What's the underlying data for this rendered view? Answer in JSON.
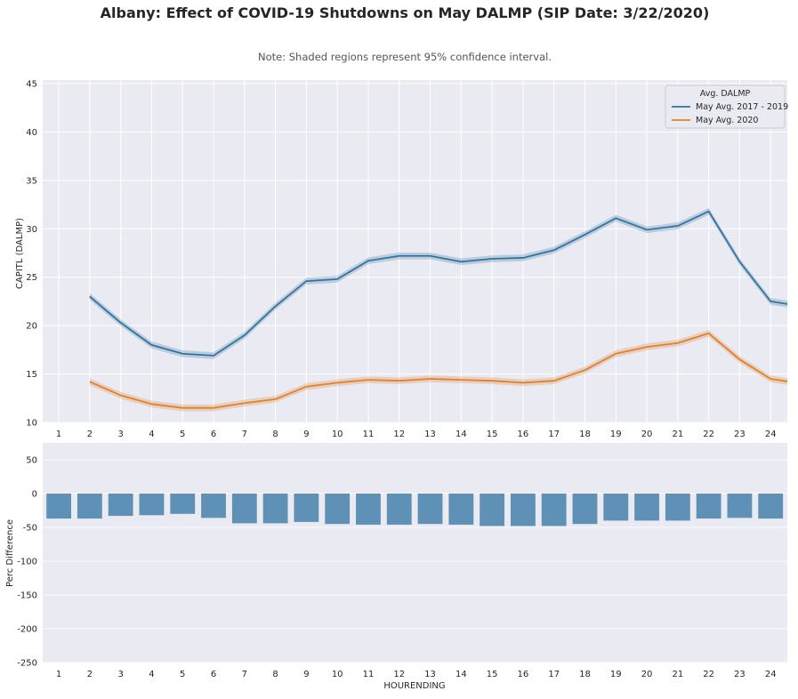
{
  "title": "Albany: Effect of COVID-19 Shutdowns on May DALMP (SIP Date: 3/22/2020)",
  "note": "Note: Shaded regions represent 95% confidence interval.",
  "colors": {
    "blue": "#3274a1",
    "orange": "#e1812c",
    "bar": "#5f91b6",
    "bg": "#eaeaf2"
  },
  "chart_data": [
    {
      "type": "line",
      "ylabel": "CAPITL (DALMP)",
      "xlabel": "",
      "xticks": [
        1,
        2,
        3,
        4,
        5,
        6,
        7,
        8,
        9,
        10,
        11,
        12,
        13,
        14,
        15,
        16,
        17,
        18,
        19,
        20,
        21,
        22,
        23,
        24
      ],
      "yticks": [
        10,
        15,
        20,
        25,
        30,
        35,
        40,
        45
      ],
      "xlim": [
        0.48,
        24.54
      ],
      "ylim": [
        10,
        45
      ],
      "grid": true,
      "legend": {
        "title": "Avg. DALMP",
        "placement": "top-right"
      },
      "x": [
        2,
        3,
        4,
        5,
        6,
        7,
        8,
        9,
        10,
        11,
        12,
        13,
        14,
        15,
        16,
        17,
        18,
        19,
        20,
        21,
        22,
        23,
        24,
        25
      ],
      "series": [
        {
          "name": "May Avg. 2017 - 2019",
          "color": "#3274a1",
          "values": [
            23.0,
            20.3,
            18.0,
            17.1,
            16.9,
            19.0,
            22.0,
            24.6,
            24.8,
            26.7,
            27.2,
            27.2,
            26.6,
            26.9,
            27.0,
            27.8,
            29.4,
            31.1,
            29.9,
            30.3,
            31.8,
            26.6,
            22.5,
            22.0
          ]
        },
        {
          "name": "May Avg. 2020",
          "color": "#e1812c",
          "values": [
            14.2,
            12.8,
            11.9,
            11.5,
            11.5,
            12.0,
            12.4,
            13.7,
            14.1,
            14.4,
            14.3,
            14.5,
            14.4,
            14.3,
            14.1,
            14.3,
            15.4,
            17.1,
            17.8,
            18.2,
            19.2,
            16.5,
            14.5,
            14.0
          ]
        }
      ]
    },
    {
      "type": "bar",
      "xlabel": "HOURENDING",
      "ylabel": "Perc Difference",
      "categories": [
        "1",
        "2",
        "3",
        "4",
        "5",
        "6",
        "7",
        "8",
        "9",
        "10",
        "11",
        "12",
        "13",
        "14",
        "15",
        "16",
        "17",
        "18",
        "19",
        "20",
        "21",
        "22",
        "23",
        "24"
      ],
      "values": [
        -37,
        -37,
        -33,
        -32,
        -30,
        -36,
        -44,
        -44,
        -42,
        -45,
        -46,
        -46,
        -45,
        -46,
        -48,
        -48,
        -48,
        -45,
        -40,
        -40,
        -40,
        -37,
        -36,
        -37
      ],
      "yticks": [
        50,
        0,
        -50,
        -100,
        -150,
        -200,
        -250
      ],
      "ylim": [
        -250,
        75
      ],
      "grid": true
    }
  ]
}
